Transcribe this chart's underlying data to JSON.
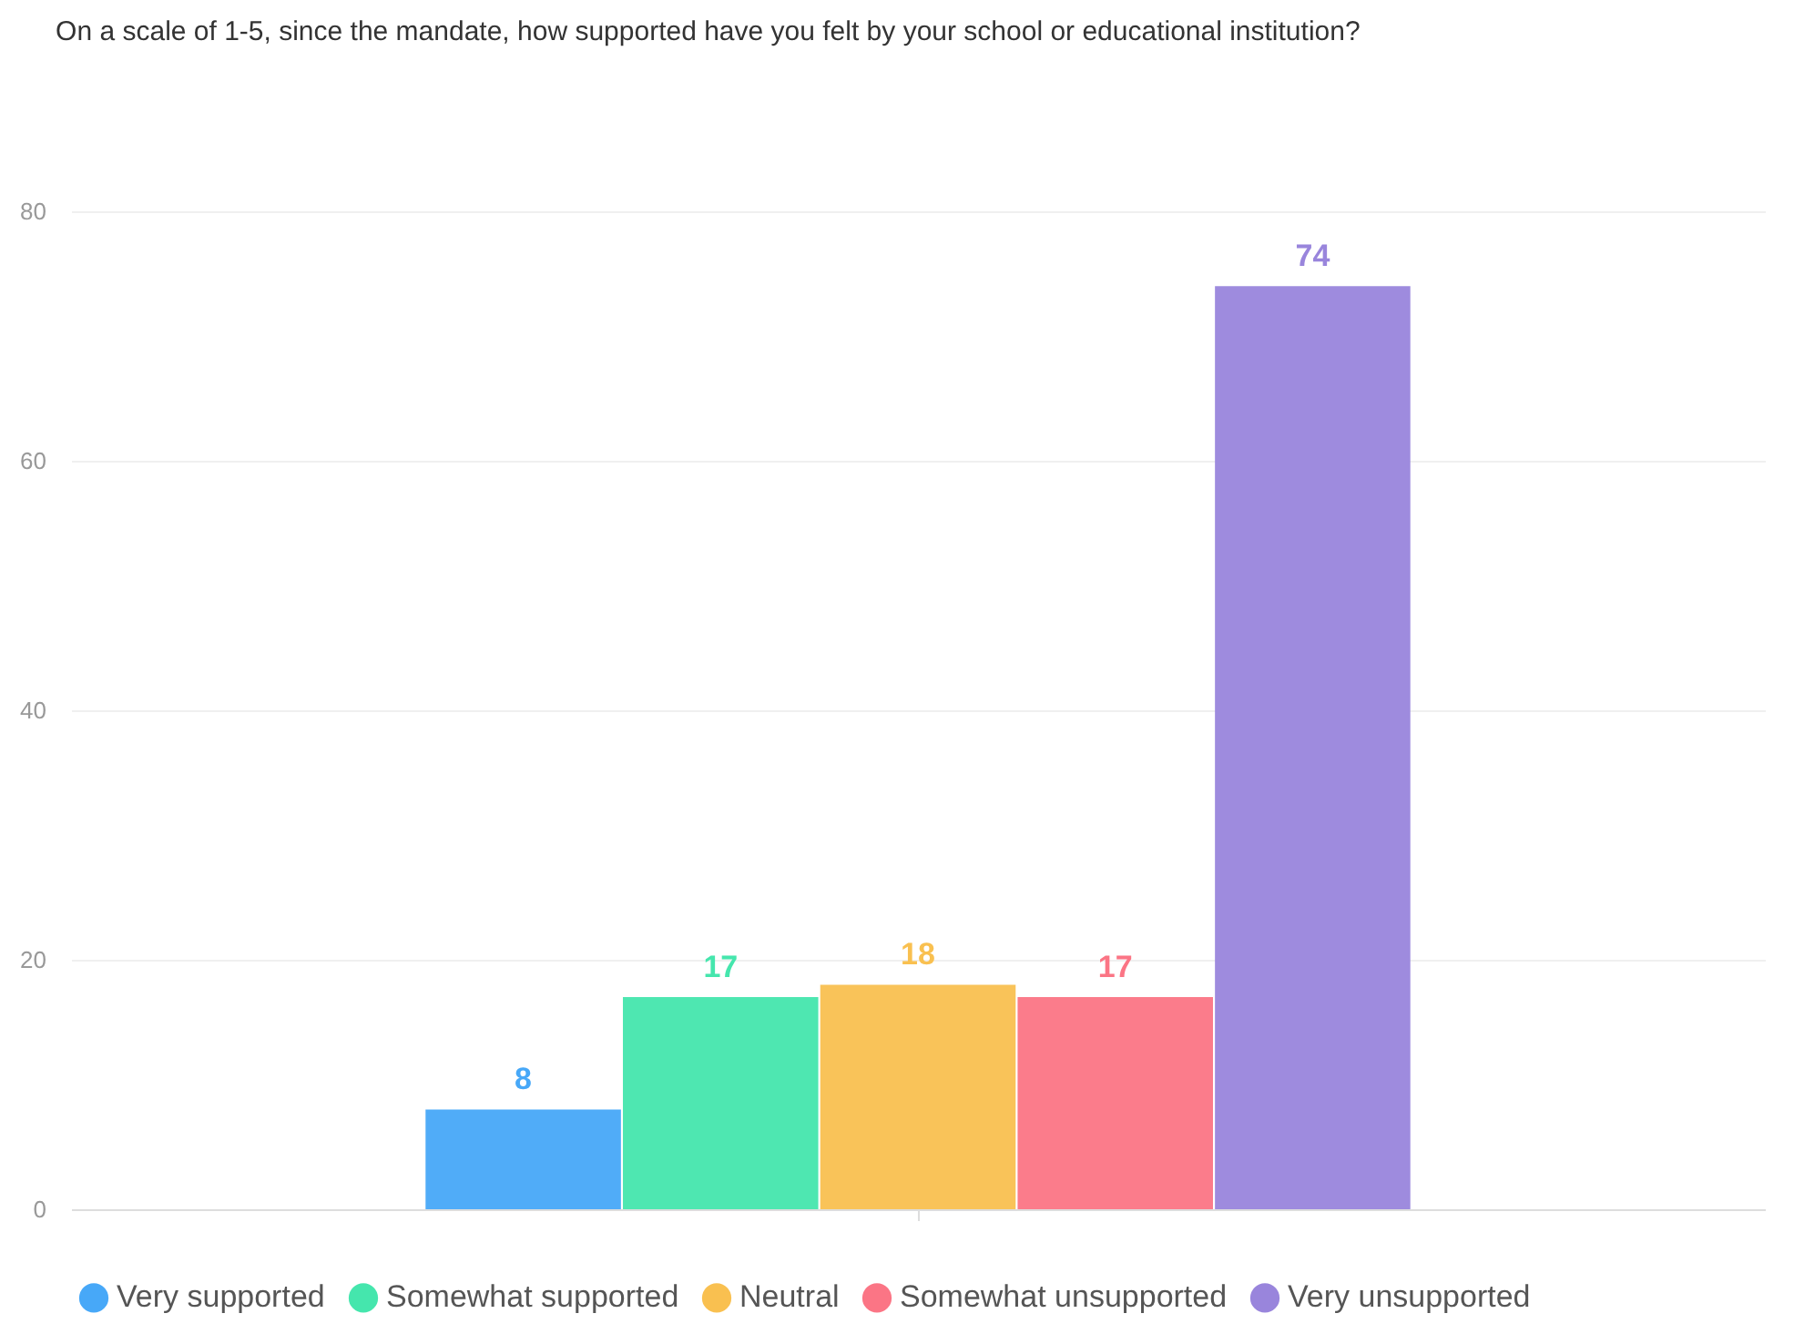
{
  "chart_data": {
    "type": "bar",
    "title": "On a scale of 1-5, since the mandate, how supported have you felt by your school or educational institution?",
    "categories": [
      null
    ],
    "series": [
      {
        "name": "Very supported",
        "color": "#47a8f8",
        "values": [
          8
        ]
      },
      {
        "name": "Somewhat supported",
        "color": "#45e6ad",
        "values": [
          17
        ]
      },
      {
        "name": "Neutral",
        "color": "#f9c050",
        "values": [
          18
        ]
      },
      {
        "name": "Somewhat unsupported",
        "color": "#fb7585",
        "values": [
          17
        ]
      },
      {
        "name": "Very unsupported",
        "color": "#9985dc",
        "values": [
          74
        ]
      }
    ],
    "ylim": [
      0,
      80
    ],
    "yticks": [
      0,
      20,
      40,
      60,
      80
    ],
    "grid": "y",
    "legend": "bottom",
    "data_labels": true
  }
}
